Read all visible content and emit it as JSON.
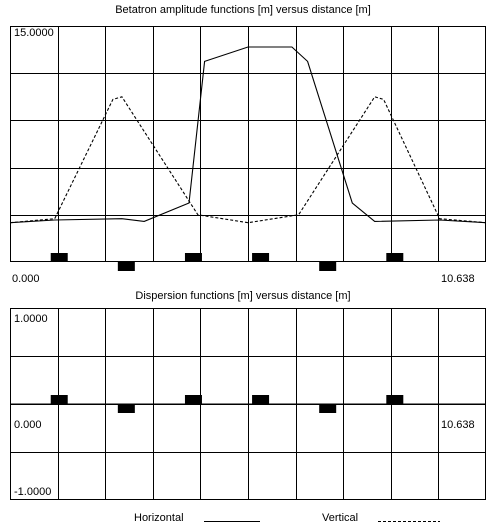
{
  "chart_data": [
    {
      "type": "line",
      "title": "Betatron amplitude functions [m] versus distance [m]",
      "xlim": [
        0.0,
        10.638
      ],
      "ylim": [
        -3.0,
        15.0
      ],
      "tick_labels": {
        "ymax": "15.0000",
        "xmin": "0.000",
        "xmax": "10.638"
      },
      "grid": true,
      "series": [
        {
          "name": "Horizontal",
          "style": "solid",
          "x": [
            0.0,
            1.0,
            2.5,
            3.0,
            4.0,
            4.35,
            5.32,
            6.3,
            6.65,
            7.65,
            8.15,
            9.6,
            10.638
          ],
          "y": [
            0.0,
            0.2,
            0.3,
            0.1,
            1.5,
            12.3,
            13.4,
            13.4,
            12.3,
            1.5,
            0.1,
            0.2,
            0.0
          ]
        },
        {
          "name": "Vertical",
          "style": "dashed",
          "x": [
            0.0,
            1.0,
            2.3,
            2.5,
            4.2,
            5.32,
            6.45,
            8.15,
            8.35,
            9.6,
            10.638
          ],
          "y": [
            0.0,
            0.3,
            9.4,
            9.6,
            0.6,
            0.0,
            0.6,
            9.6,
            9.4,
            0.3,
            0.0
          ]
        }
      ],
      "elements": [
        {
          "x": 1.1,
          "side": "up"
        },
        {
          "x": 2.6,
          "side": "down"
        },
        {
          "x": 4.1,
          "side": "up"
        },
        {
          "x": 5.6,
          "side": "up"
        },
        {
          "x": 7.1,
          "side": "down"
        },
        {
          "x": 8.6,
          "side": "up"
        }
      ]
    },
    {
      "type": "line",
      "title": "Dispersion functions [m] versus distance [m]",
      "xlim": [
        0.0,
        10.638
      ],
      "ylim": [
        -1.0,
        1.0
      ],
      "tick_labels": {
        "ymax": "1.0000",
        "ymin": "-1.0000",
        "xmin": "0.000",
        "xmax": "10.638"
      },
      "grid": true,
      "series": [
        {
          "name": "Horizontal",
          "style": "solid",
          "x": [
            0.0,
            10.638
          ],
          "y": [
            0.0,
            0.0
          ]
        },
        {
          "name": "Vertical",
          "style": "dashed",
          "x": [
            0.0,
            10.638
          ],
          "y": [
            0.0,
            0.0
          ]
        }
      ],
      "elements": [
        {
          "x": 1.1,
          "side": "up"
        },
        {
          "x": 2.6,
          "side": "down"
        },
        {
          "x": 4.1,
          "side": "up"
        },
        {
          "x": 5.6,
          "side": "up"
        },
        {
          "x": 7.1,
          "side": "down"
        },
        {
          "x": 8.6,
          "side": "up"
        }
      ]
    }
  ],
  "legend": {
    "horizontal": "Horizontal",
    "vertical": "Vertical"
  }
}
